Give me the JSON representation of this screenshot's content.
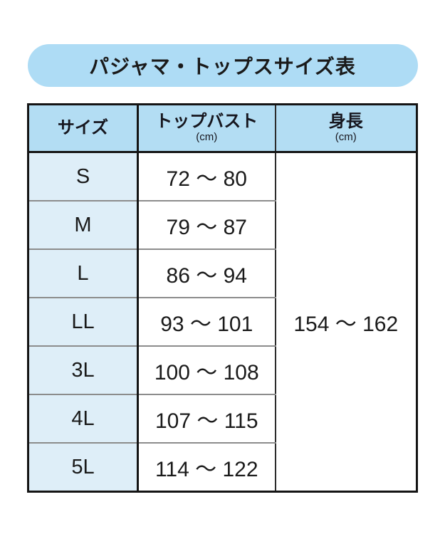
{
  "title": {
    "text": "パジャマ・トップスサイズ表"
  },
  "table": {
    "columns": [
      {
        "label": "サイズ",
        "unit": ""
      },
      {
        "label": "トップバスト",
        "unit": "(cm)"
      },
      {
        "label": "身長",
        "unit": "(cm)"
      }
    ],
    "rows": [
      {
        "size": "S",
        "top_bust": "72 〜 80"
      },
      {
        "size": "M",
        "top_bust": "79 〜 87"
      },
      {
        "size": "L",
        "top_bust": "86 〜 94"
      },
      {
        "size": "LL",
        "top_bust": "93 〜 101"
      },
      {
        "size": "3L",
        "top_bust": "100 〜 108"
      },
      {
        "size": "4L",
        "top_bust": "107 〜 115"
      },
      {
        "size": "5L",
        "top_bust": "114 〜 122"
      }
    ],
    "height_all_sizes": "154 〜 162"
  },
  "colors": {
    "pill_blue": "#aedcf5",
    "header_blue": "#b3ddf3",
    "size_column_blue": "#deeef8",
    "border_dark": "#141414",
    "row_divider_gray": "#8c8c8c",
    "text": "#1a1a1a"
  },
  "chart_data": {
    "type": "table",
    "title": "パジャマ・トップスサイズ表",
    "columns": [
      "サイズ",
      "トップバスト(cm)",
      "身長(cm)"
    ],
    "rows": [
      [
        "S",
        "72 〜 80",
        "154 〜 162"
      ],
      [
        "M",
        "79 〜 87",
        "154 〜 162"
      ],
      [
        "L",
        "86 〜 94",
        "154 〜 162"
      ],
      [
        "LL",
        "93 〜 101",
        "154 〜 162"
      ],
      [
        "3L",
        "100 〜 108",
        "154 〜 162"
      ],
      [
        "4L",
        "107 〜 115",
        "154 〜 162"
      ],
      [
        "5L",
        "114 〜 122",
        "154 〜 162"
      ]
    ],
    "notes": "height column is a single merged cell 154 〜 162 spanning all 7 size rows"
  }
}
